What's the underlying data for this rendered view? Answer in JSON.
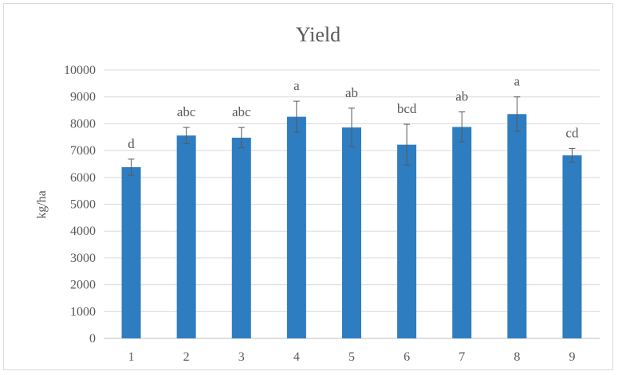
{
  "chart_data": {
    "type": "bar",
    "title": "Yield",
    "xlabel": "",
    "ylabel": "kg/ha",
    "categories": [
      "1",
      "2",
      "3",
      "4",
      "5",
      "6",
      "7",
      "8",
      "9"
    ],
    "values": [
      6380,
      7560,
      7480,
      8260,
      7860,
      7220,
      7880,
      8360,
      6820
    ],
    "error": [
      300,
      300,
      380,
      580,
      720,
      760,
      560,
      640,
      260
    ],
    "significance_letters": [
      "d",
      "abc",
      "abc",
      "a",
      "ab",
      "bcd",
      "ab",
      "a",
      "cd"
    ],
    "ylim": [
      0,
      10000
    ],
    "yticks": [
      "0",
      "1000",
      "2000",
      "3000",
      "4000",
      "5000",
      "6000",
      "7000",
      "8000",
      "9000",
      "10000"
    ],
    "grid": true,
    "bar_color": "#2e7dc1",
    "error_bar_color": "#595959",
    "grid_color": "#d9d9d9"
  }
}
